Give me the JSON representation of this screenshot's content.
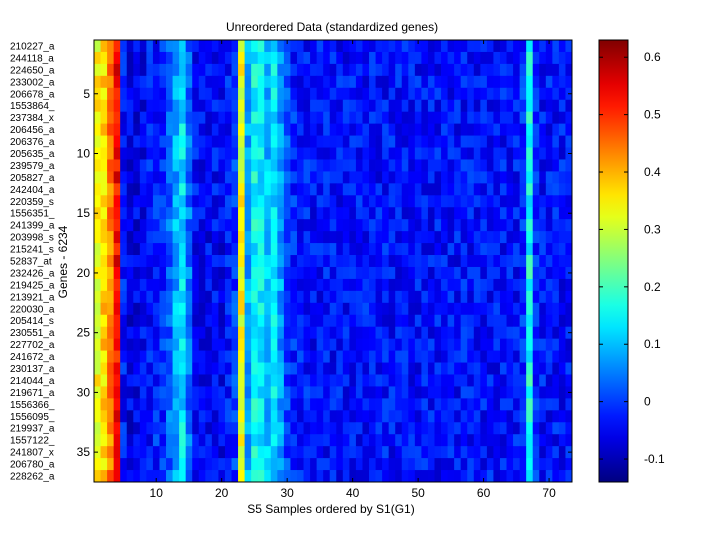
{
  "chart_data": {
    "type": "heatmap",
    "title": "Unreordered Data (standardized genes)",
    "xlabel": "S5 Samples ordered by S1(G1)",
    "ylabel": "Genes - 6234",
    "n_cols": 73,
    "n_rows": 37,
    "x_ticks": [
      10,
      20,
      30,
      40,
      50,
      60,
      70
    ],
    "y_ticks": [
      5,
      10,
      15,
      20,
      25,
      30,
      35
    ],
    "row_labels": [
      "210227_a",
      "244118_a",
      "224650_a",
      "233002_a",
      "206678_a",
      "1553864_",
      "237384_x",
      "206456_a",
      "206376_a",
      "205635_a",
      "239579_a",
      "205827_a",
      "242404_a",
      "220359_s",
      "1556351_",
      "241399_a",
      "203998_s",
      "215241_s",
      "52837_at",
      "232426_a",
      "219425_a",
      "213921_a",
      "220030_a",
      "205414_s",
      "230551_a",
      "227702_a",
      "241672_a",
      "230137_a",
      "214044_a",
      "219671_a",
      "1556366_",
      "1556095_",
      "219937_a",
      "1557122_",
      "241807_x",
      "206780_a",
      "228262_a"
    ],
    "colorbar": {
      "colormap": "jet",
      "min": -0.14,
      "max": 0.63,
      "ticks": [
        -0.1,
        0,
        0.1,
        0.2,
        0.3,
        0.4,
        0.5,
        0.6
      ]
    },
    "column_profile": {
      "1": 0.34,
      "2": 0.37,
      "3": 0.44,
      "4": 0.53,
      "5": -0.03,
      "6": -0.06,
      "7": -0.06,
      "8": -0.05,
      "9": -0.03,
      "10": -0.02,
      "11": -0.01,
      "12": 0.03,
      "13": 0.09,
      "14": 0.13,
      "15": 0.04,
      "16": -0.04,
      "17": -0.05,
      "18": -0.05,
      "19": -0.04,
      "20": -0.05,
      "21": -0.03,
      "22": 0.0,
      "23": 0.33,
      "24": 0.09,
      "25": 0.15,
      "26": 0.14,
      "27": 0.1,
      "28": 0.13,
      "29": 0.07,
      "30": 0.01,
      "31": -0.02,
      "32": -0.03,
      "33": -0.03,
      "34": -0.04,
      "66": -0.01,
      "67": 0.16,
      "68": -0.02
    },
    "default_level": -0.035,
    "noise_amplitude": 0.05
  }
}
